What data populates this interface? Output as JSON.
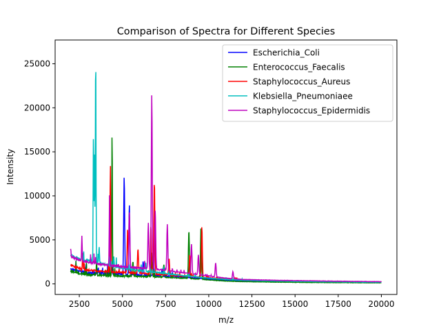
{
  "chart_data": {
    "type": "line",
    "title": "Comparison of Spectra for Different Species",
    "xlabel": "m/z",
    "ylabel": "Intensity",
    "xlim": [
      1100,
      20900
    ],
    "ylim": [
      -1200,
      27700
    ],
    "xticks": [
      2500,
      5000,
      7500,
      10000,
      12500,
      15000,
      17500,
      20000
    ],
    "xtick_labels": [
      "2500",
      "5000",
      "7500",
      "10000",
      "12500",
      "15000",
      "17500",
      "20000"
    ],
    "yticks": [
      0,
      5000,
      10000,
      15000,
      20000,
      25000
    ],
    "ytick_labels": [
      "0",
      "5000",
      "10000",
      "15000",
      "20000",
      "25000"
    ],
    "grid": false,
    "legend": "top-right",
    "series": [
      {
        "name": "Escherichia_Coli",
        "color": "#0000ff",
        "baseline": [
          [
            2000,
            1750
          ],
          [
            2500,
            1450
          ],
          [
            3000,
            1250
          ],
          [
            4000,
            1150
          ],
          [
            5000,
            1100
          ],
          [
            6000,
            1000
          ],
          [
            7000,
            950
          ],
          [
            8000,
            850
          ],
          [
            9000,
            700
          ],
          [
            10000,
            550
          ],
          [
            11000,
            430
          ],
          [
            12000,
            350
          ],
          [
            14000,
            280
          ],
          [
            17000,
            220
          ],
          [
            20000,
            180
          ]
        ],
        "peaks": [
          [
            5100,
            12100
          ],
          [
            5400,
            8900
          ],
          [
            6200,
            2500
          ],
          [
            6800,
            2800
          ],
          [
            4400,
            2200
          ],
          [
            3600,
            1900
          ],
          [
            7300,
            1700
          ]
        ]
      },
      {
        "name": "Enterococcus_Faecalis",
        "color": "#008000",
        "baseline": [
          [
            2000,
            1500
          ],
          [
            2500,
            1200
          ],
          [
            3000,
            1050
          ],
          [
            4000,
            950
          ],
          [
            5000,
            900
          ],
          [
            6000,
            850
          ],
          [
            7000,
            800
          ],
          [
            8000,
            700
          ],
          [
            9000,
            600
          ],
          [
            10000,
            450
          ],
          [
            11000,
            320
          ],
          [
            12000,
            260
          ],
          [
            14000,
            200
          ],
          [
            17000,
            150
          ],
          [
            20000,
            120
          ]
        ],
        "peaks": [
          [
            4400,
            17200
          ],
          [
            8850,
            6100
          ],
          [
            9550,
            6500
          ],
          [
            6700,
            3600
          ],
          [
            3500,
            2600
          ],
          [
            5600,
            2400
          ],
          [
            7400,
            2200
          ]
        ]
      },
      {
        "name": "Staphylococcus_Aureus",
        "color": "#ff0000",
        "baseline": [
          [
            2000,
            2200
          ],
          [
            2500,
            1750
          ],
          [
            3000,
            1550
          ],
          [
            4000,
            1400
          ],
          [
            5000,
            1300
          ],
          [
            6000,
            1200
          ],
          [
            7000,
            1100
          ],
          [
            8000,
            950
          ],
          [
            9000,
            850
          ],
          [
            10000,
            700
          ],
          [
            11000,
            550
          ],
          [
            12000,
            450
          ],
          [
            14000,
            350
          ],
          [
            17000,
            260
          ],
          [
            20000,
            200
          ]
        ],
        "peaks": [
          [
            4300,
            13700
          ],
          [
            6850,
            11600
          ],
          [
            9600,
            6500
          ],
          [
            5300,
            6200
          ],
          [
            6650,
            6600
          ],
          [
            5900,
            4000
          ],
          [
            8900,
            3300
          ],
          [
            2700,
            3400
          ],
          [
            7700,
            2900
          ]
        ]
      },
      {
        "name": "Klebsiella_Pneumoniaee",
        "color": "#00bfbf",
        "baseline": [
          [
            2000,
            3300
          ],
          [
            2500,
            2800
          ],
          [
            3000,
            2600
          ],
          [
            3500,
            2500
          ],
          [
            4000,
            2200
          ],
          [
            5000,
            1800
          ],
          [
            6000,
            1500
          ],
          [
            7000,
            1300
          ],
          [
            8000,
            1050
          ],
          [
            9000,
            850
          ],
          [
            10000,
            650
          ],
          [
            11000,
            500
          ],
          [
            12000,
            420
          ],
          [
            14000,
            320
          ],
          [
            17000,
            240
          ],
          [
            20000,
            180
          ]
        ],
        "peaks": [
          [
            3450,
            26400
          ],
          [
            3320,
            17100
          ],
          [
            3380,
            15400
          ],
          [
            3650,
            4300
          ],
          [
            2650,
            3700
          ],
          [
            4500,
            3200
          ],
          [
            6300,
            2500
          ]
        ]
      },
      {
        "name": "Staphylococcus_Epidermidis",
        "color": "#bf00bf",
        "baseline": [
          [
            2000,
            3100
          ],
          [
            2500,
            2700
          ],
          [
            3000,
            2450
          ],
          [
            4000,
            2150
          ],
          [
            5000,
            1950
          ],
          [
            6000,
            1800
          ],
          [
            7000,
            1650
          ],
          [
            8000,
            1400
          ],
          [
            9000,
            1150
          ],
          [
            10000,
            900
          ],
          [
            11000,
            650
          ],
          [
            12000,
            500
          ],
          [
            14000,
            400
          ],
          [
            17000,
            320
          ],
          [
            20000,
            250
          ]
        ],
        "peaks": [
          [
            6700,
            21400
          ],
          [
            4250,
            9000
          ],
          [
            5400,
            8200
          ],
          [
            6500,
            6900
          ],
          [
            6900,
            8400
          ],
          [
            7600,
            6800
          ],
          [
            2650,
            5500
          ],
          [
            2000,
            4100
          ],
          [
            9000,
            4500
          ],
          [
            9400,
            3300
          ],
          [
            10400,
            2400
          ],
          [
            11400,
            1400
          ]
        ]
      }
    ]
  }
}
